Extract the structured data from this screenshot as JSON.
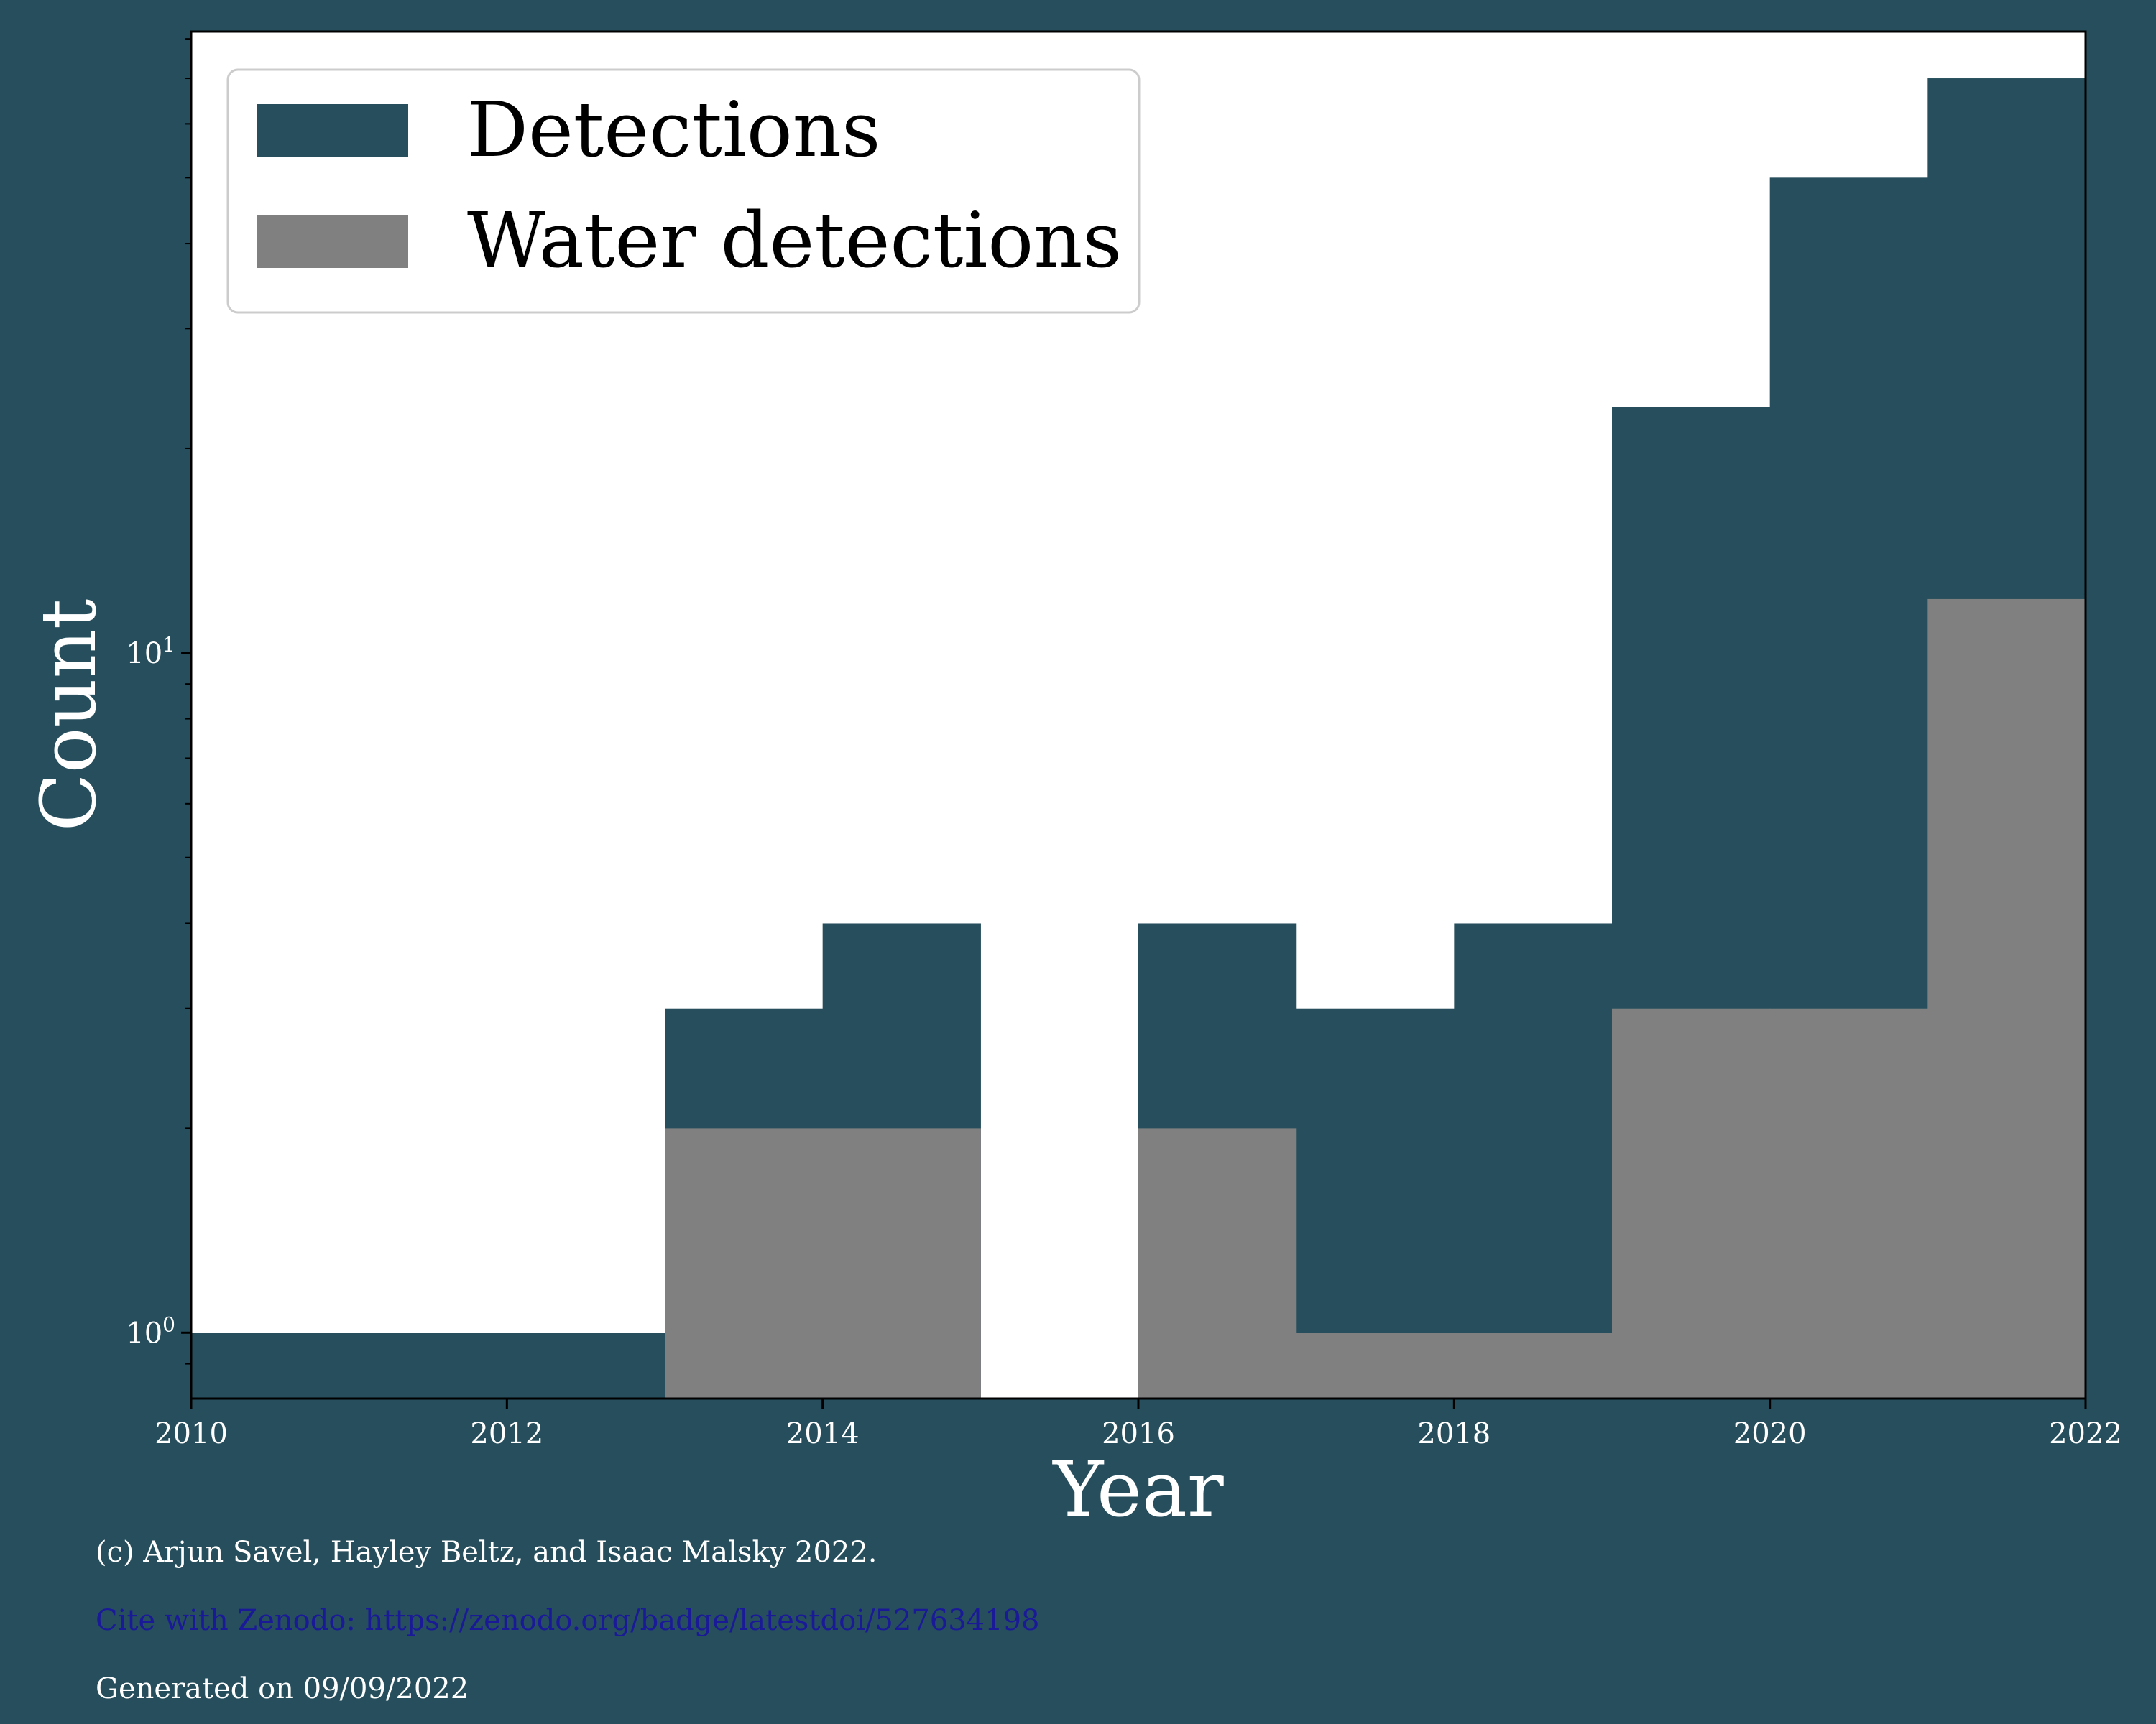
{
  "chart_data": {
    "type": "bar",
    "x_edges": [
      2010,
      2011,
      2012,
      2013,
      2014,
      2015,
      2016,
      2017,
      2018,
      2019,
      2020,
      2021,
      2022
    ],
    "series": [
      {
        "name": "Detections",
        "values": [
          1,
          1,
          1,
          3,
          4,
          0,
          4,
          3,
          4,
          23,
          50,
          70
        ],
        "color": "#264e5c"
      },
      {
        "name": "Water detections",
        "values": [
          0,
          0,
          0,
          2,
          2,
          0,
          2,
          1,
          1,
          3,
          3,
          12
        ],
        "color": "#808080"
      }
    ],
    "xlabel": "Year",
    "ylabel": "Count",
    "xlim": [
      2010,
      2022
    ],
    "ylim": [
      0.8,
      82
    ],
    "yscale": "log",
    "xticks": [
      "2010",
      "2012",
      "2014",
      "2016",
      "2018",
      "2020",
      "2022"
    ],
    "yticks": [
      {
        "value": 1,
        "base": "10",
        "exp": "0"
      },
      {
        "value": 10,
        "base": "10",
        "exp": "1"
      }
    ],
    "grid": false,
    "legend_position": "top-left",
    "plot_background": "#ffffff",
    "figure_background": "#264e5c"
  },
  "footer": {
    "copyright": "(c) Arjun Savel, Hayley Beltz, and Isaac Malsky 2022.",
    "cite": "Cite with Zenodo: https://zenodo.org/badge/latestdoi/527634198",
    "generated": "Generated on 09/09/2022"
  }
}
